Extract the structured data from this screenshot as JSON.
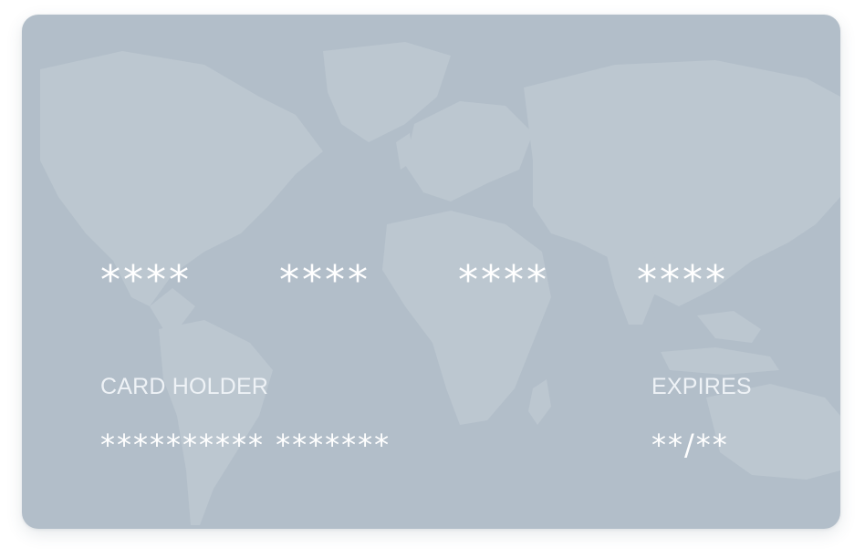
{
  "card": {
    "background_color": "#b2bec9",
    "map_color": "#bcc7d0",
    "number_groups": [
      "****",
      "****",
      "****",
      "****"
    ],
    "holder_label": "CARD HOLDER",
    "holder_value": "********** *******",
    "expires_label": "EXPIRES",
    "expires_value": "**/**"
  }
}
